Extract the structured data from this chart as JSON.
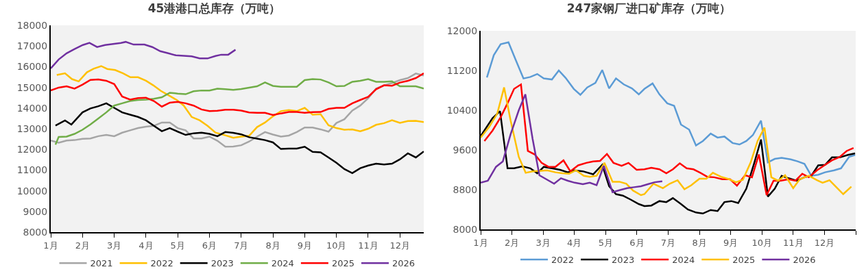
{
  "chart_data": [
    {
      "type": "line",
      "title": "45港港口总库存（万吨）",
      "xlim": [
        1,
        12.75
      ],
      "xticks": [
        {
          "value": 1,
          "label": "1月"
        },
        {
          "value": 2,
          "label": "2月"
        },
        {
          "value": 3,
          "label": "3月"
        },
        {
          "value": 4,
          "label": "4月"
        },
        {
          "value": 5,
          "label": "5月"
        },
        {
          "value": 6,
          "label": "6月"
        },
        {
          "value": 7,
          "label": "7月"
        },
        {
          "value": 8,
          "label": "8月"
        },
        {
          "value": 9,
          "label": "9月"
        },
        {
          "value": 10,
          "label": "10月"
        },
        {
          "value": 11,
          "label": "11月"
        },
        {
          "value": 12,
          "label": "12月"
        }
      ],
      "ylim": [
        8000,
        18000
      ],
      "yticks": [
        8000,
        9000,
        10000,
        11000,
        12000,
        13000,
        14000,
        15000,
        16000,
        17000,
        18000
      ],
      "grid": false,
      "legend": "bottom",
      "series": [
        {
          "name": "2021",
          "color": "#a5a5a5",
          "x": [
            1,
            1.25,
            1.5,
            1.75,
            2,
            2.25,
            2.5,
            2.75,
            3,
            3.25,
            3.5,
            3.75,
            4,
            4.25,
            4.5,
            4.75,
            5,
            5.25,
            5.5,
            5.75,
            6,
            6.25,
            6.5,
            6.75,
            7,
            7.25,
            7.5,
            7.75,
            8,
            8.25,
            8.5,
            8.75,
            9,
            9.25,
            9.5,
            9.75,
            10,
            10.25,
            10.5,
            10.75,
            11,
            11.25,
            11.5,
            11.75,
            12,
            12.25,
            12.5,
            12.75
          ],
          "values": [
            12430,
            12320,
            12430,
            12450,
            12510,
            12530,
            12640,
            12700,
            12640,
            12810,
            12920,
            13030,
            13100,
            13140,
            13300,
            13300,
            13030,
            12920,
            12530,
            12530,
            12620,
            12420,
            12130,
            12140,
            12200,
            12380,
            12620,
            12840,
            12720,
            12620,
            12670,
            12840,
            13060,
            13060,
            12970,
            12860,
            13280,
            13460,
            13880,
            14120,
            14480,
            14940,
            15100,
            15210,
            15350,
            15450,
            15670,
            15570
          ]
        },
        {
          "name": "2022",
          "color": "#ffc000",
          "x": [
            1.19,
            1.45,
            1.67,
            1.88,
            2.14,
            2.35,
            2.59,
            2.78,
            3.03,
            3.28,
            3.51,
            3.75,
            4,
            4.23,
            4.47,
            4.72,
            4.97,
            5.19,
            5.44,
            5.69,
            5.94,
            6.19,
            6.5,
            6.75,
            7,
            7.25,
            7.5,
            7.75,
            8,
            8.25,
            8.5,
            8.75,
            9,
            9.25,
            9.5,
            9.75,
            10,
            10.25,
            10.5,
            10.75,
            11,
            11.25,
            11.5,
            11.75,
            12,
            12.25,
            12.5,
            12.75
          ],
          "values": [
            15600,
            15680,
            15400,
            15290,
            15730,
            15900,
            16030,
            15890,
            15840,
            15680,
            15490,
            15490,
            15320,
            15100,
            14830,
            14610,
            14390,
            14120,
            13570,
            13410,
            13140,
            12810,
            12680,
            12560,
            12620,
            12660,
            13080,
            13300,
            13600,
            13850,
            13900,
            13850,
            14010,
            13680,
            13700,
            13170,
            13030,
            12950,
            12970,
            12880,
            13000,
            13190,
            13270,
            13410,
            13280,
            13370,
            13380,
            13320
          ]
        },
        {
          "name": "2023",
          "color": "#000000",
          "x": [
            1.15,
            1.45,
            1.65,
            2,
            2.25,
            2.5,
            2.75,
            3,
            3.25,
            3.5,
            3.75,
            4,
            4.25,
            4.5,
            4.75,
            5,
            5.25,
            5.5,
            5.75,
            6,
            6.25,
            6.5,
            6.75,
            7,
            7.25,
            7.5,
            7.75,
            8,
            8.25,
            8.5,
            8.75,
            9,
            9.25,
            9.5,
            9.75,
            10,
            10.25,
            10.5,
            10.75,
            11,
            11.25,
            11.5,
            11.75,
            12,
            12.25,
            12.5,
            12.75
          ],
          "values": [
            13150,
            13400,
            13200,
            13790,
            13980,
            14090,
            14230,
            14010,
            13790,
            13680,
            13570,
            13410,
            13140,
            12880,
            13030,
            12860,
            12700,
            12780,
            12810,
            12750,
            12640,
            12840,
            12800,
            12730,
            12590,
            12520,
            12450,
            12340,
            12020,
            12040,
            12040,
            12130,
            11880,
            11860,
            11610,
            11350,
            11050,
            10850,
            11090,
            11220,
            11310,
            11270,
            11310,
            11520,
            11810,
            11610,
            11900
          ]
        },
        {
          "name": "2024",
          "color": "#70ad47",
          "x": [
            1.15,
            1.25,
            1.5,
            1.75,
            2,
            2.25,
            2.5,
            2.75,
            3,
            3.25,
            3.5,
            3.75,
            4,
            4.25,
            4.5,
            4.75,
            5,
            5.25,
            5.5,
            5.75,
            6,
            6.25,
            6.5,
            6.75,
            7,
            7.25,
            7.5,
            7.75,
            8,
            8.25,
            8.5,
            8.75,
            9,
            9.25,
            9.5,
            9.75,
            10,
            10.25,
            10.5,
            10.75,
            11,
            11.25,
            11.5,
            11.75,
            12,
            12.25,
            12.5,
            12.75
          ],
          "values": [
            12230,
            12600,
            12620,
            12750,
            12950,
            13210,
            13500,
            13790,
            14120,
            14230,
            14340,
            14390,
            14410,
            14450,
            14520,
            14740,
            14700,
            14670,
            14810,
            14850,
            14850,
            14940,
            14910,
            14880,
            14920,
            14990,
            15050,
            15240,
            15070,
            15030,
            15030,
            15030,
            15350,
            15400,
            15380,
            15240,
            15050,
            15070,
            15270,
            15320,
            15400,
            15270,
            15270,
            15290,
            15050,
            15050,
            15050,
            14940
          ]
        },
        {
          "name": "2025",
          "color": "#ff0000",
          "x": [
            1,
            1.25,
            1.5,
            1.75,
            2,
            2.25,
            2.5,
            2.75,
            3,
            3.25,
            3.5,
            3.75,
            4,
            4.25,
            4.5,
            4.75,
            5,
            5.25,
            5.5,
            5.75,
            6,
            6.25,
            6.5,
            6.75,
            7,
            7.25,
            7.5,
            7.75,
            8,
            8.25,
            8.5,
            8.75,
            9,
            9.25,
            9.5,
            9.75,
            10,
            10.25,
            10.5,
            10.75,
            11,
            11.25,
            11.5,
            11.75,
            12,
            12.25,
            12.5,
            12.75
          ],
          "values": [
            14850,
            14990,
            15050,
            14940,
            15130,
            15360,
            15380,
            15320,
            15160,
            14560,
            14410,
            14480,
            14500,
            14340,
            14070,
            14260,
            14300,
            14230,
            14120,
            13930,
            13850,
            13870,
            13920,
            13920,
            13880,
            13790,
            13770,
            13770,
            13660,
            13740,
            13810,
            13810,
            13770,
            13800,
            13810,
            13960,
            14010,
            14010,
            14230,
            14390,
            14540,
            14910,
            15100,
            15080,
            15230,
            15320,
            15450,
            15680
          ]
        },
        {
          "name": "2026",
          "color": "#7030a0",
          "x": [
            1,
            1.25,
            1.5,
            1.75,
            2.01,
            2.22,
            2.46,
            2.71,
            2.96,
            3.21,
            3.36,
            3.61,
            3.95,
            4.2,
            4.45,
            4.7,
            4.94,
            5.19,
            5.44,
            5.69,
            5.94,
            6.19,
            6.37,
            6.59,
            6.82
          ],
          "values": [
            15920,
            16350,
            16650,
            16850,
            17050,
            17150,
            16950,
            17050,
            17100,
            17150,
            17200,
            17070,
            17070,
            16950,
            16750,
            16650,
            16550,
            16530,
            16500,
            16400,
            16400,
            16520,
            16580,
            16580,
            16820
          ]
        }
      ]
    },
    {
      "type": "line",
      "title": "247家钢厂进口矿库存（万吨）",
      "xlim": [
        1,
        13
      ],
      "xticks": [
        {
          "value": 1,
          "label": "1月"
        },
        {
          "value": 2,
          "label": "2月"
        },
        {
          "value": 3,
          "label": "3月"
        },
        {
          "value": 4,
          "label": "4月"
        },
        {
          "value": 5,
          "label": "5月"
        },
        {
          "value": 6,
          "label": "6月"
        },
        {
          "value": 7,
          "label": "7月"
        },
        {
          "value": 8,
          "label": "8月"
        },
        {
          "value": 9,
          "label": "9月"
        },
        {
          "value": 10,
          "label": "10月"
        },
        {
          "value": 11,
          "label": "11月"
        },
        {
          "value": 12,
          "label": "12月"
        },
        {
          "value": 13,
          "label": null
        }
      ],
      "ylim": [
        8000,
        12000
      ],
      "yticks": [
        8000,
        8800,
        9600,
        10400,
        11200,
        12000
      ],
      "grid": false,
      "legend": "bottom",
      "series": [
        {
          "name": "2022",
          "color": "#5b9bd5",
          "x": [
            1.2,
            1.42,
            1.64,
            1.89,
            2.11,
            2.37,
            2.59,
            2.81,
            3.02,
            3.28,
            3.5,
            3.72,
            3.98,
            4.19,
            4.41,
            4.67,
            4.89,
            5.11,
            5.33,
            5.58,
            5.84,
            6.06,
            6.24,
            6.5,
            6.72,
            6.97,
            7.19,
            7.41,
            7.67,
            7.89,
            8.11,
            8.36,
            8.58,
            8.8,
            9.06,
            9.28,
            9.5,
            9.71,
            9.97,
            10.19,
            10.41,
            10.63,
            10.92,
            11.14,
            11.36,
            11.58,
            11.8,
            12.02,
            12.31,
            12.53,
            12.79,
            12.98
          ],
          "values": [
            11060,
            11510,
            11730,
            11770,
            11430,
            11040,
            11070,
            11130,
            11040,
            11020,
            11200,
            11050,
            10830,
            10710,
            10860,
            10950,
            11210,
            10840,
            11040,
            10920,
            10840,
            10720,
            10830,
            10940,
            10720,
            10540,
            10490,
            10110,
            10010,
            9690,
            9780,
            9930,
            9850,
            9870,
            9740,
            9710,
            9780,
            9900,
            10190,
            9350,
            9420,
            9440,
            9410,
            9370,
            9320,
            9080,
            9100,
            9150,
            9190,
            9230,
            9460,
            9500
          ]
        },
        {
          "name": "2023",
          "color": "#000000",
          "x": [
            1,
            1.38,
            1.62,
            1.86,
            2.07,
            2.33,
            2.59,
            2.81,
            3.02,
            3.28,
            3.54,
            3.79,
            3.98,
            4.27,
            4.6,
            4.89,
            5.11,
            5.33,
            5.55,
            5.8,
            6.06,
            6.24,
            6.46,
            6.72,
            6.94,
            7.15,
            7.41,
            7.63,
            7.89,
            8.11,
            8.36,
            8.58,
            8.8,
            9.02,
            9.24,
            9.5,
            9.75,
            9.97,
            10.19,
            10.41,
            10.63,
            10.85,
            11.11,
            11.36,
            11.58,
            11.8,
            12.02,
            12.24,
            12.49,
            12.75,
            12.98
          ],
          "values": [
            9880,
            10240,
            10380,
            9230,
            9230,
            9270,
            9230,
            9130,
            9260,
            9230,
            9200,
            9150,
            9190,
            9170,
            9110,
            9300,
            8870,
            8710,
            8680,
            8600,
            8510,
            8470,
            8480,
            8570,
            8550,
            8630,
            8510,
            8400,
            8340,
            8320,
            8390,
            8370,
            8550,
            8570,
            8530,
            8820,
            9330,
            9810,
            8660,
            8820,
            9080,
            9030,
            8980,
            9050,
            9080,
            9290,
            9300,
            9450,
            9450,
            9500,
            9530
          ]
        },
        {
          "name": "2024",
          "color": "#ff0000",
          "x": [
            1.12,
            1.38,
            1.64,
            1.86,
            2.07,
            2.29,
            2.51,
            2.73,
            2.95,
            3.17,
            3.39,
            3.65,
            3.87,
            4.12,
            4.38,
            4.6,
            4.82,
            5.04,
            5.25,
            5.51,
            5.73,
            5.99,
            6.24,
            6.46,
            6.72,
            6.94,
            7.15,
            7.37,
            7.59,
            7.81,
            8.03,
            8.25,
            8.47,
            8.73,
            8.98,
            9.2,
            9.46,
            9.68,
            9.9,
            10.15,
            10.37,
            10.59,
            10.85,
            11.07,
            11.29,
            11.5,
            11.76,
            12.02,
            12.24,
            12.49,
            12.71,
            12.93
          ],
          "values": [
            9780,
            9990,
            10260,
            10540,
            10830,
            10920,
            9580,
            9510,
            9340,
            9260,
            9260,
            9390,
            9170,
            9290,
            9340,
            9370,
            9380,
            9520,
            9340,
            9280,
            9340,
            9200,
            9210,
            9240,
            9210,
            9130,
            9210,
            9330,
            9230,
            9210,
            9140,
            9060,
            9050,
            9010,
            9010,
            8880,
            9090,
            9050,
            9510,
            8690,
            8980,
            8980,
            9010,
            8980,
            9120,
            9050,
            9190,
            9300,
            9390,
            9460,
            9580,
            9640
          ]
        },
        {
          "name": "2025",
          "color": "#ffc000",
          "x": [
            1,
            1.27,
            1.53,
            1.75,
            1.96,
            2.22,
            2.44,
            2.66,
            2.92,
            3.13,
            3.39,
            3.61,
            3.83,
            4.05,
            4.3,
            4.49,
            4.71,
            4.96,
            5.22,
            5.44,
            5.66,
            5.88,
            6.13,
            6.24,
            6.53,
            6.83,
            7.05,
            7.3,
            7.52,
            7.74,
            8,
            8.22,
            8.43,
            8.69,
            8.95,
            9.17,
            9.39,
            9.64,
            9.86,
            10.08,
            10.3,
            10.52,
            10.74,
            11,
            11.21,
            11.5,
            11.76,
            11.94,
            12.16,
            12.38,
            12.6,
            12.86
          ],
          "values": [
            9850,
            10060,
            10330,
            10860,
            10190,
            9460,
            9140,
            9170,
            9180,
            9190,
            9150,
            9130,
            9120,
            9190,
            9080,
            9060,
            9080,
            9340,
            8960,
            8960,
            8920,
            8780,
            8690,
            8710,
            8920,
            8830,
            8920,
            8990,
            8810,
            8890,
            9020,
            9020,
            9140,
            9060,
            9010,
            8950,
            9000,
            9350,
            9780,
            10050,
            9050,
            8980,
            9090,
            8830,
            9010,
            9080,
            8990,
            8940,
            8990,
            8850,
            8710,
            8860
          ]
        },
        {
          "name": "2026",
          "color": "#7030a0",
          "x": [
            1,
            1.23,
            1.49,
            1.71,
            1.96,
            2.22,
            2.43,
            2.66,
            2.88,
            3.1,
            3.35,
            3.57,
            3.79,
            4.01,
            4.27,
            4.49,
            4.71,
            4.94,
            5.22,
            5.44,
            5.69,
            5.91,
            6.13,
            6.35,
            6.57,
            6.81
          ],
          "values": [
            8940,
            8980,
            9260,
            9370,
            9920,
            10400,
            10720,
            9830,
            9090,
            9010,
            8920,
            9030,
            8980,
            8940,
            8910,
            8940,
            8890,
            9280,
            8750,
            8790,
            8830,
            8850,
            8870,
            8910,
            8950,
            8970
          ]
        }
      ]
    }
  ]
}
